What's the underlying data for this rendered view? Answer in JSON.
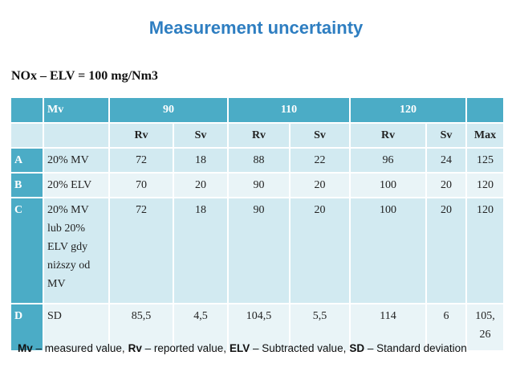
{
  "title": "Measurement uncertainty",
  "subtitle": "NOx – ELV = 100 mg/Nm3",
  "table": {
    "mv": "Mv",
    "groups": [
      "90",
      "110",
      "120"
    ],
    "subheader": [
      "Rv",
      "Sv",
      "Rv",
      "Sv",
      "Rv",
      "Sv",
      "Max"
    ],
    "rows": [
      [
        "A",
        "20% MV",
        "72",
        "18",
        "88",
        "22",
        "96",
        "24",
        "125"
      ],
      [
        "B",
        "20% ELV",
        "70",
        "20",
        "90",
        "20",
        "100",
        "20",
        "120"
      ],
      [
        "C",
        "20% MV lub 20% ELV gdy niższy od MV",
        "72",
        "18",
        "90",
        "20",
        "100",
        "20",
        "120"
      ],
      [
        "D",
        "SD",
        "85,5",
        "4,5",
        "104,5",
        "5,5",
        "114",
        "6",
        "105, 26"
      ]
    ]
  },
  "footer": [
    {
      "term": "Mv",
      "desc": "– measured value,"
    },
    {
      "term": "Rv",
      "desc": "– reported value,"
    },
    {
      "term": "ELV",
      "desc": "– Subtracted value,"
    },
    {
      "term": "SD",
      "desc": "– Standard deviation"
    }
  ]
}
